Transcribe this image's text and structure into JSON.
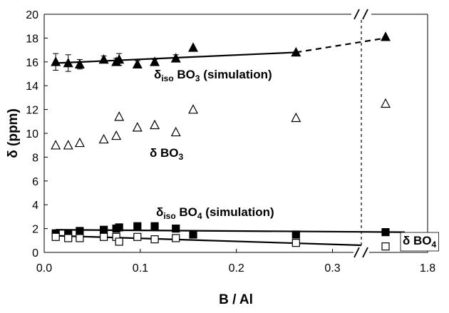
{
  "chart_data": {
    "type": "scatter",
    "xlabel": "B / Al",
    "ylabel": "δ (ppm)",
    "x_ticks": [
      "0.0",
      "0.1",
      "0.2",
      "0.3",
      "1.8"
    ],
    "y_ticks": [
      "0",
      "2",
      "4",
      "6",
      "8",
      "10",
      "12",
      "14",
      "16",
      "18",
      "20"
    ],
    "ylim": [
      0,
      20
    ],
    "axis_break": {
      "x_break_after": 0.33,
      "label": "/ /"
    },
    "grid": false,
    "annotations": {
      "iso_bo3": {
        "main": "δ",
        "sub": "iso",
        "rest": " BO",
        "sub2": "3",
        "tail": " (simulation)"
      },
      "bo3": {
        "main": "δ BO",
        "sub": "3"
      },
      "iso_bo4": {
        "main": "δ",
        "sub": "iso",
        "rest": " BO",
        "sub2": "4",
        "tail": " (simulation)"
      },
      "bo4": {
        "main": "δ BO",
        "sub": "4"
      }
    },
    "series": [
      {
        "key": "iso_bo3_sim",
        "marker": "filled-triangle",
        "x": [
          0.012,
          0.025,
          0.037,
          0.062,
          0.075,
          0.078,
          0.097,
          0.115,
          0.137,
          0.155,
          0.262,
          1.8
        ],
        "y": [
          16.0,
          15.9,
          15.8,
          16.2,
          16.0,
          16.2,
          15.8,
          16.0,
          16.3,
          17.2,
          16.8,
          18.1
        ],
        "err": [
          0.7,
          0.7,
          0.4,
          0.3,
          0.3,
          0.5,
          0.3,
          0.2,
          0.3,
          0,
          0,
          0
        ]
      },
      {
        "key": "bo3",
        "marker": "open-triangle",
        "x": [
          0.012,
          0.025,
          0.037,
          0.062,
          0.075,
          0.078,
          0.097,
          0.115,
          0.137,
          0.155,
          0.262,
          1.8
        ],
        "y": [
          9.0,
          9.0,
          9.2,
          9.5,
          9.8,
          11.4,
          10.5,
          10.7,
          10.1,
          12.0,
          11.3,
          12.5
        ]
      },
      {
        "key": "iso_bo4_sim",
        "marker": "filled-square",
        "x": [
          0.012,
          0.025,
          0.037,
          0.062,
          0.075,
          0.078,
          0.097,
          0.115,
          0.137,
          0.155,
          0.262,
          1.8
        ],
        "y": [
          1.6,
          1.5,
          1.8,
          1.9,
          2.0,
          2.1,
          2.2,
          2.2,
          2.0,
          1.5,
          1.5,
          1.7
        ]
      },
      {
        "key": "bo4",
        "marker": "open-square",
        "x": [
          0.012,
          0.025,
          0.037,
          0.062,
          0.075,
          0.078,
          0.097,
          0.115,
          0.137,
          0.262,
          1.8
        ],
        "y": [
          1.3,
          1.2,
          1.2,
          1.3,
          1.3,
          0.9,
          1.3,
          1.1,
          1.2,
          0.8,
          0.5
        ]
      }
    ],
    "trend_lines": [
      {
        "key": "iso_bo3_fit",
        "x": [
          0.012,
          0.262
        ],
        "y": [
          15.9,
          16.8
        ],
        "style": "solid"
      },
      {
        "key": "iso_bo3_ext",
        "x": [
          0.262,
          1.8
        ],
        "y": [
          16.8,
          18.0
        ],
        "style": "dashed"
      },
      {
        "key": "iso_bo4_fit",
        "x": [
          0.012,
          1.8
        ],
        "y": [
          1.9,
          1.7
        ],
        "style": "solid"
      },
      {
        "key": "bo4_fit",
        "x": [
          0.012,
          0.33
        ],
        "y": [
          1.4,
          0.6
        ],
        "style": "solid"
      }
    ]
  }
}
